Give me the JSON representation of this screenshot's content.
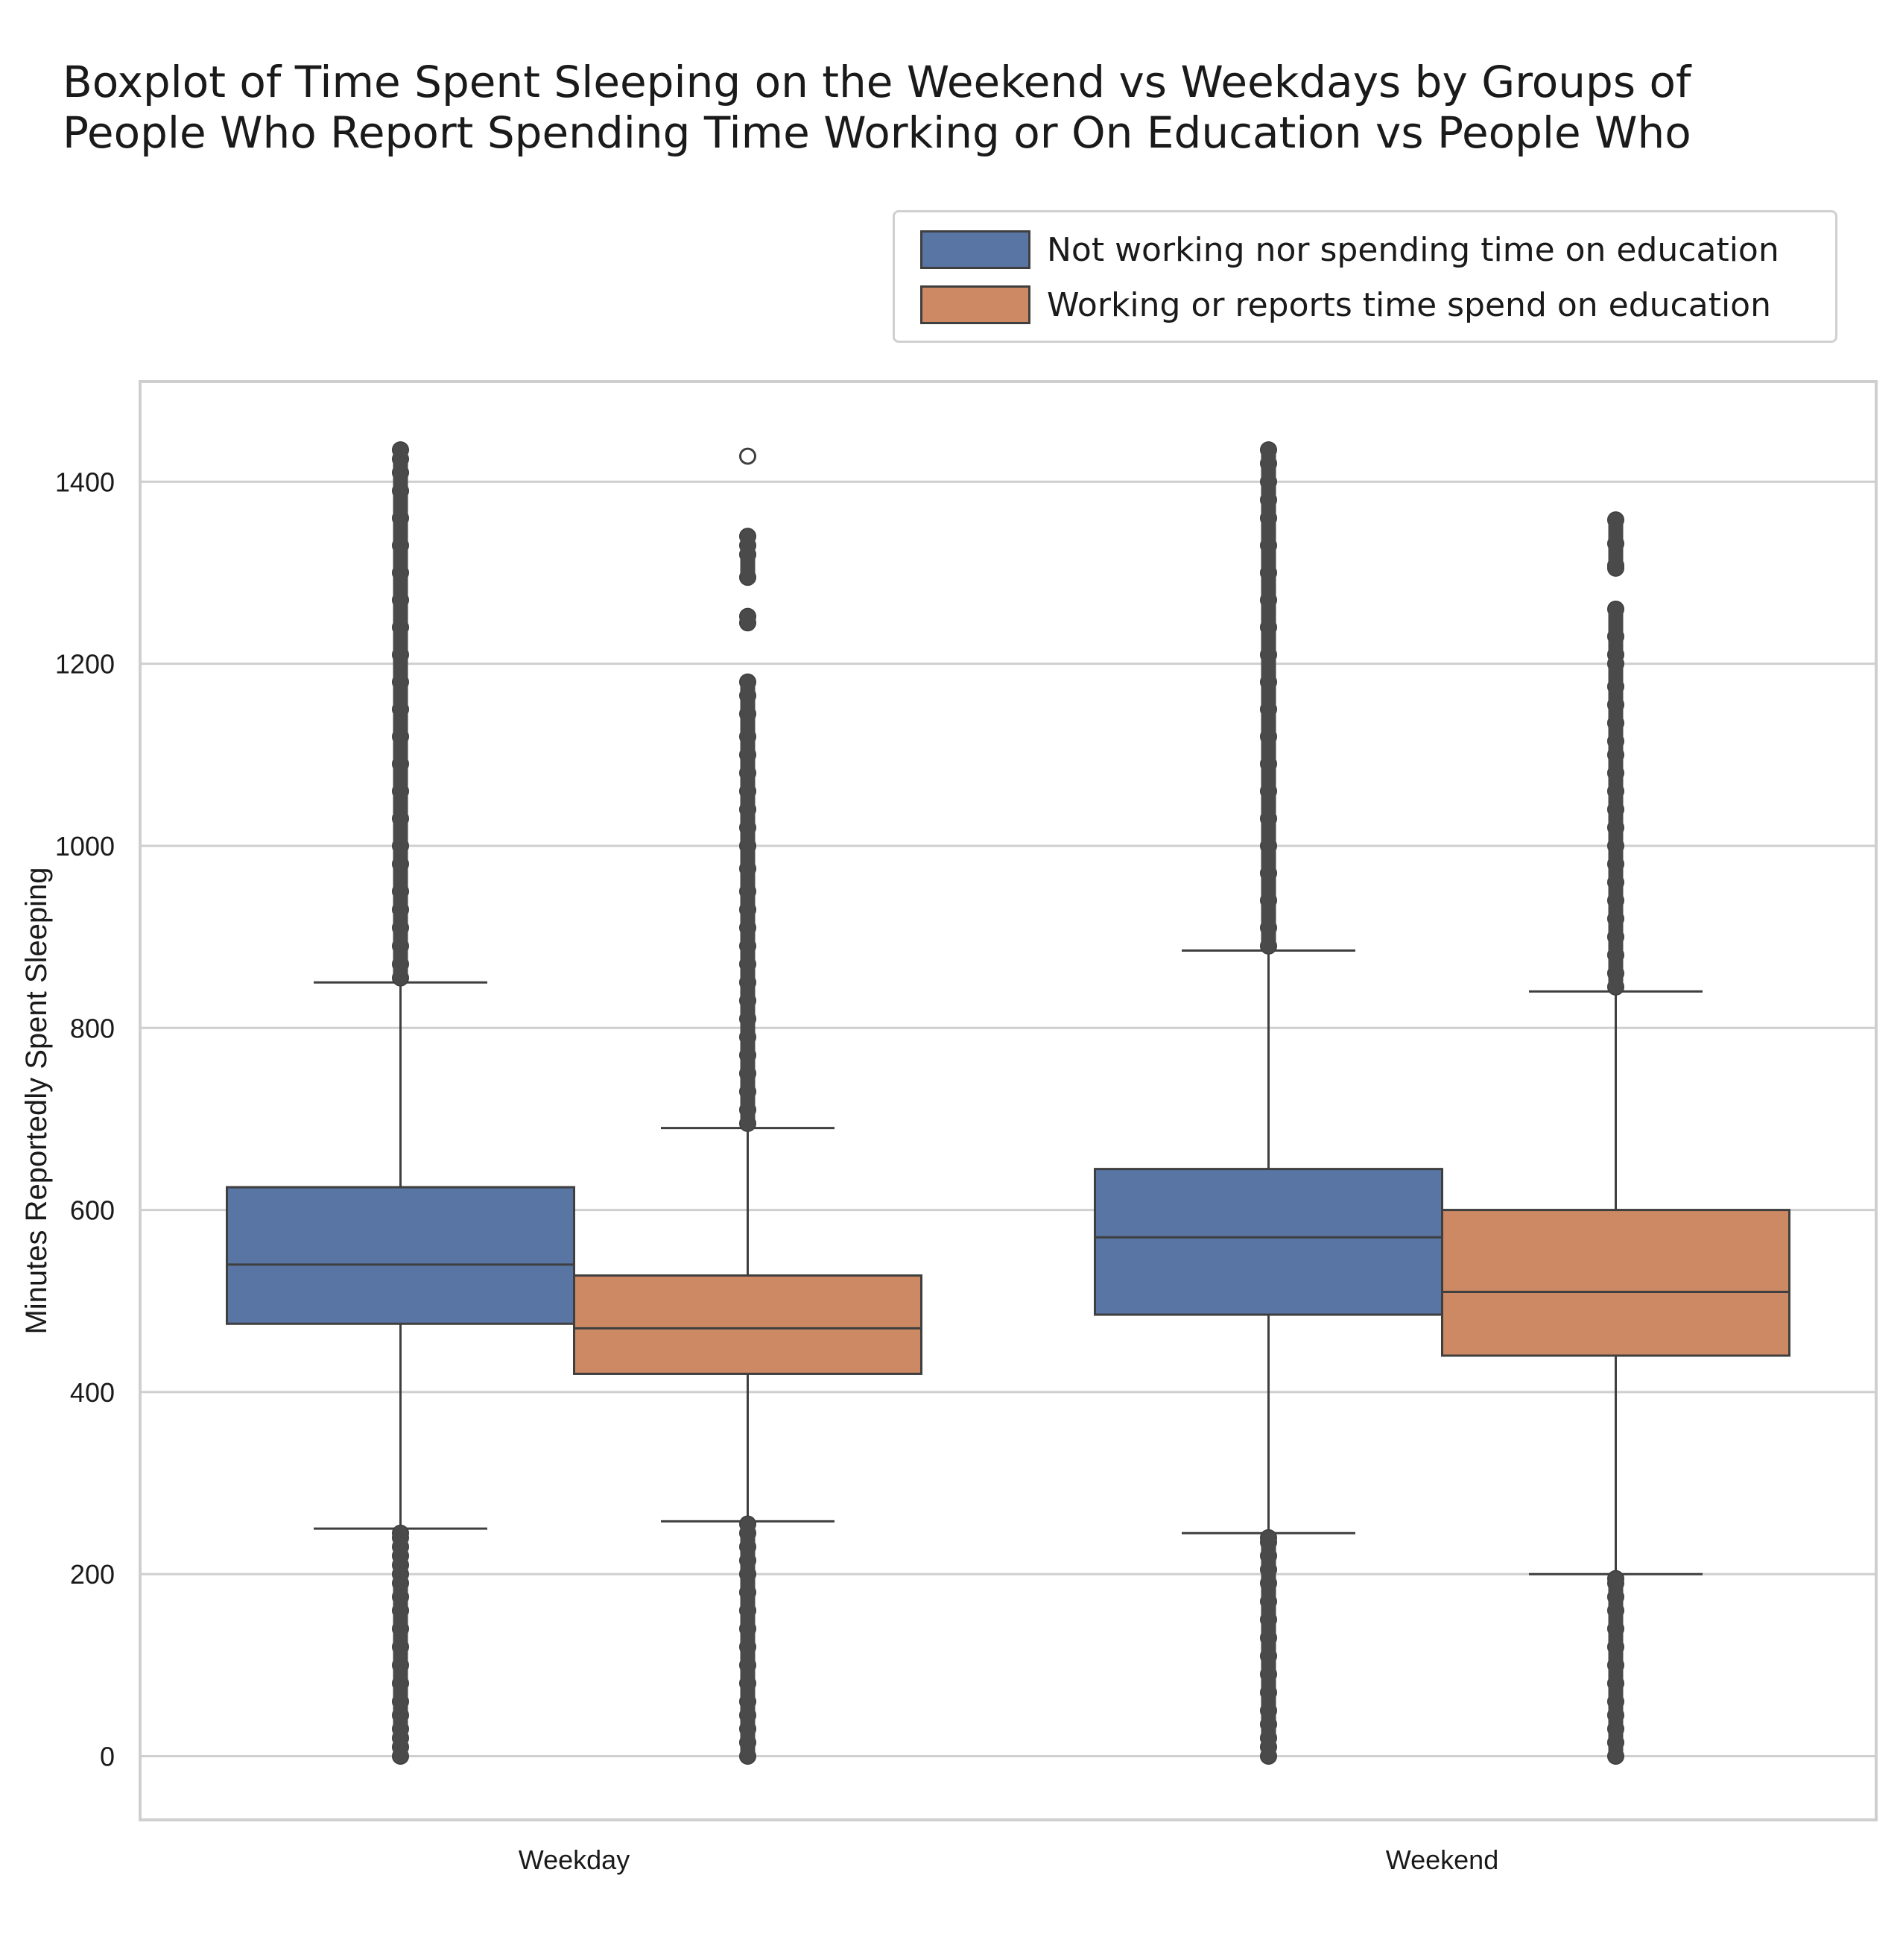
{
  "chart_data": {
    "type": "box",
    "title_lines": [
      "Boxplot of Time Spent Sleeping on the Weekend vs Weekdays by Groups of",
      "People Who Report Spending Time Working or On Education vs People Who"
    ],
    "xlabel": "",
    "ylabel": "Minutes Reportedly Spent Sleeping",
    "ylim": [
      -70,
      1510
    ],
    "yticks": [
      0,
      200,
      400,
      600,
      800,
      1000,
      1200,
      1400
    ],
    "categories": [
      "Weekday",
      "Weekend"
    ],
    "grid": "horizontal",
    "legend_position": "top-right",
    "series": [
      {
        "name": "Not working nor spending time on education",
        "color": "#5875a4",
        "boxes": [
          {
            "category": "Weekday",
            "whisker_low": 250,
            "q1": 475,
            "median": 540,
            "q3": 625,
            "whisker_high": 850,
            "outliers_low": [
              0,
              10,
              20,
              30,
              45,
              60,
              80,
              100,
              120,
              140,
              160,
              175,
              190,
              200,
              210,
              220,
              230,
              240,
              245
            ],
            "outliers_high": [
              855,
              870,
              890,
              910,
              930,
              950,
              980,
              1000,
              1030,
              1060,
              1090,
              1120,
              1150,
              1180,
              1210,
              1240,
              1270,
              1300,
              1330,
              1360,
              1390,
              1410,
              1425,
              1435
            ]
          },
          {
            "category": "Weekend",
            "whisker_low": 245,
            "q1": 485,
            "median": 570,
            "q3": 645,
            "whisker_high": 885,
            "outliers_low": [
              0,
              10,
              20,
              35,
              50,
              70,
              90,
              110,
              130,
              150,
              170,
              190,
              205,
              220,
              235,
              240
            ],
            "outliers_high": [
              890,
              910,
              940,
              970,
              1000,
              1030,
              1060,
              1090,
              1120,
              1150,
              1180,
              1210,
              1240,
              1270,
              1300,
              1330,
              1360,
              1380,
              1400,
              1420,
              1435
            ]
          }
        ]
      },
      {
        "name": "Working or reports time spend on education",
        "color": "#cc8963",
        "boxes": [
          {
            "category": "Weekday",
            "whisker_low": 258,
            "q1": 420,
            "median": 470,
            "q3": 528,
            "whisker_high": 690,
            "outliers_low": [
              0,
              15,
              30,
              45,
              60,
              80,
              100,
              120,
              140,
              160,
              180,
              200,
              215,
              230,
              245,
              255
            ],
            "outliers_high": [
              695,
              710,
              730,
              750,
              770,
              790,
              810,
              830,
              850,
              870,
              890,
              910,
              930,
              950,
              975,
              1000,
              1020,
              1040,
              1060,
              1080,
              1100,
              1120,
              1145,
              1165,
              1180,
              1245,
              1252,
              1295,
              1320,
              1330,
              1340,
              1428
            ]
          },
          {
            "category": "Weekend",
            "whisker_low": 200,
            "q1": 440,
            "median": 510,
            "q3": 600,
            "whisker_high": 840,
            "outliers_low": [
              0,
              15,
              30,
              45,
              60,
              80,
              100,
              120,
              140,
              160,
              175,
              190,
              195
            ],
            "outliers_high": [
              845,
              860,
              880,
              900,
              920,
              940,
              960,
              980,
              1000,
              1020,
              1040,
              1060,
              1080,
              1100,
              1115,
              1135,
              1155,
              1175,
              1200,
              1210,
              1230,
              1260,
              1305,
              1308,
              1332,
              1358
            ]
          }
        ]
      }
    ]
  }
}
